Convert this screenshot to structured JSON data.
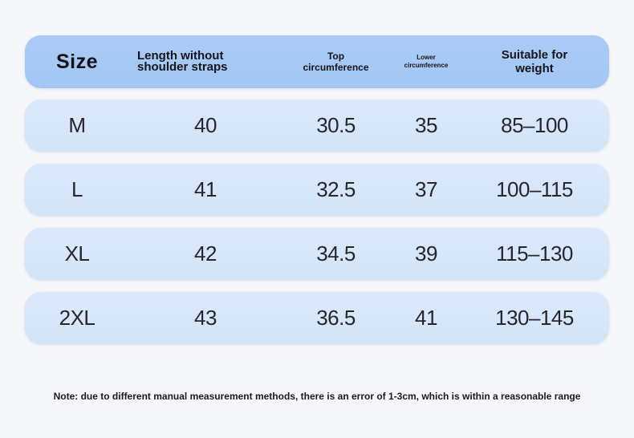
{
  "table": {
    "headers": {
      "size": "Size",
      "length": "Length without shoulder straps",
      "top": "Top circumference",
      "lower": "Lower circumference",
      "weight": "Suitable for weight"
    },
    "rows": [
      {
        "size": "M",
        "length": "40",
        "top": "30.5",
        "lower": "35",
        "weight": "85–100"
      },
      {
        "size": "L",
        "length": "41",
        "top": "32.5",
        "lower": "37",
        "weight": "100–115"
      },
      {
        "size": "XL",
        "length": "42",
        "top": "34.5",
        "lower": "39",
        "weight": "115–130"
      },
      {
        "size": "2XL",
        "length": "43",
        "top": "36.5",
        "lower": "41",
        "weight": "130–145"
      }
    ]
  },
  "note": "Note: due to different manual measurement methods, there is an error of 1-3cm, which is within a reasonable range",
  "colors": {
    "header_bg": "#a9cbf6",
    "row_bg": "#d7e7fa",
    "page_bg": "#f6f7fb"
  }
}
